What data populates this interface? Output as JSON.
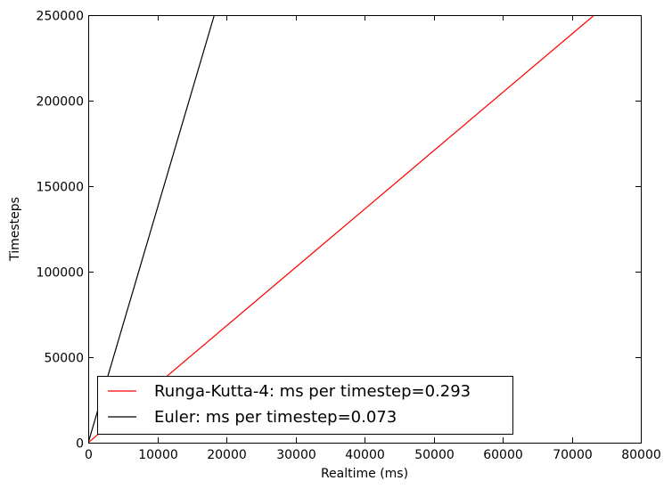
{
  "chart_data": {
    "type": "line",
    "title": "",
    "xlabel": "Realtime (ms)",
    "ylabel": "Timesteps",
    "xlim": [
      0,
      80000
    ],
    "ylim": [
      0,
      250000
    ],
    "xticks": [
      0,
      10000,
      20000,
      30000,
      40000,
      50000,
      60000,
      70000,
      80000
    ],
    "yticks": [
      0,
      50000,
      100000,
      150000,
      200000,
      250000
    ],
    "xtick_labels": [
      "0",
      "10000",
      "20000",
      "30000",
      "40000",
      "50000",
      "60000",
      "70000",
      "80000"
    ],
    "ytick_labels": [
      "0",
      "50000",
      "100000",
      "150000",
      "200000",
      "250000"
    ],
    "grid": false,
    "legend_position": "bottom-left",
    "series": [
      {
        "name": "Runga-Kutta-4: ms per timestep=0.293",
        "color": "#ff0000",
        "x": [
          0,
          73250
        ],
        "y": [
          0,
          250000
        ]
      },
      {
        "name": "Euler: ms per timestep=0.073",
        "color": "#000000",
        "x": [
          0,
          18250
        ],
        "y": [
          0,
          250000
        ]
      }
    ]
  }
}
